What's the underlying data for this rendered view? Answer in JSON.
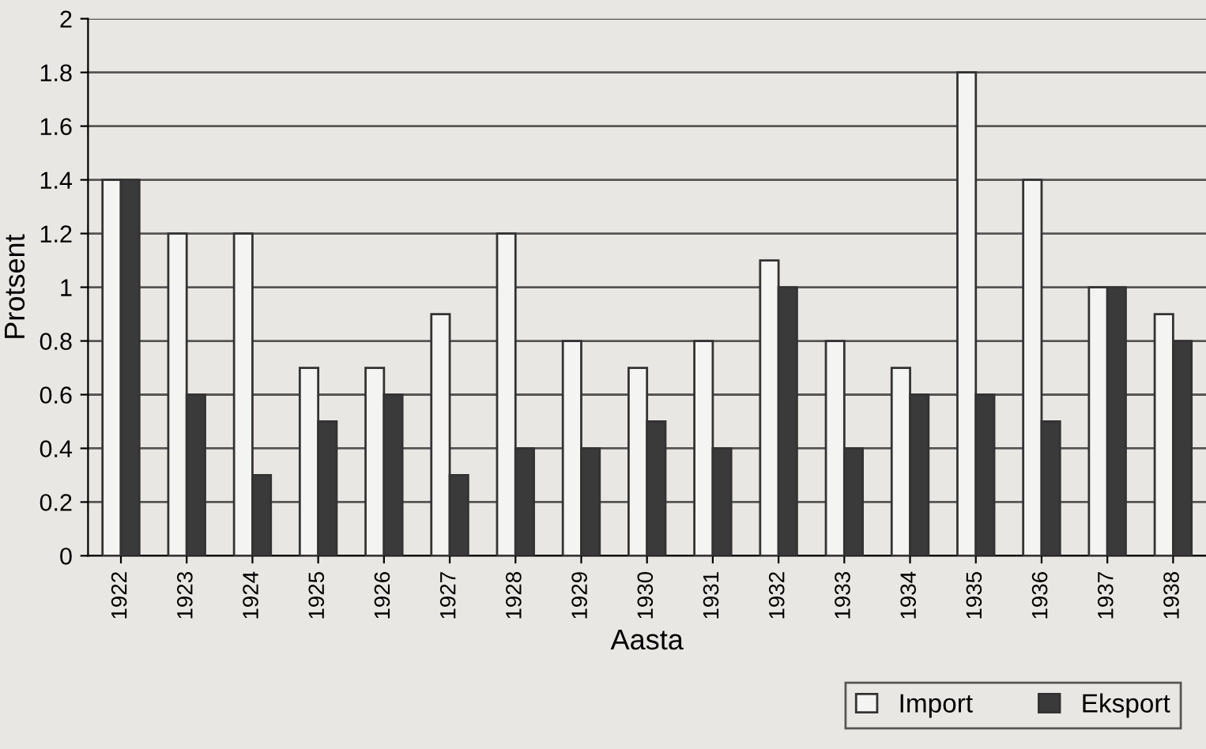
{
  "chart_data": {
    "type": "bar",
    "xlabel": "Aasta",
    "ylabel": "Protsent",
    "categories": [
      "1922",
      "1923",
      "1924",
      "1925",
      "1926",
      "1927",
      "1928",
      "1929",
      "1930",
      "1931",
      "1932",
      "1933",
      "1934",
      "1935",
      "1936",
      "1937",
      "1938"
    ],
    "series": [
      {
        "name": "Import",
        "color": "#f4f4f2",
        "values": [
          1.4,
          1.2,
          1.2,
          0.7,
          0.7,
          0.9,
          1.2,
          0.8,
          0.7,
          0.8,
          1.1,
          0.8,
          0.7,
          1.8,
          1.4,
          1.0,
          0.9
        ]
      },
      {
        "name": "Eksport",
        "color": "#3a3a3a",
        "values": [
          1.4,
          0.6,
          0.3,
          0.5,
          0.6,
          0.3,
          0.4,
          0.4,
          0.5,
          0.4,
          1.0,
          0.4,
          0.6,
          0.6,
          0.5,
          1.0,
          0.8
        ]
      }
    ],
    "ylim": [
      0,
      2
    ],
    "yticks": [
      0,
      0.2,
      0.4,
      0.6,
      0.8,
      1,
      1.2,
      1.4,
      1.6,
      1.8,
      2
    ],
    "grid": "y",
    "legend": "bottom right"
  }
}
